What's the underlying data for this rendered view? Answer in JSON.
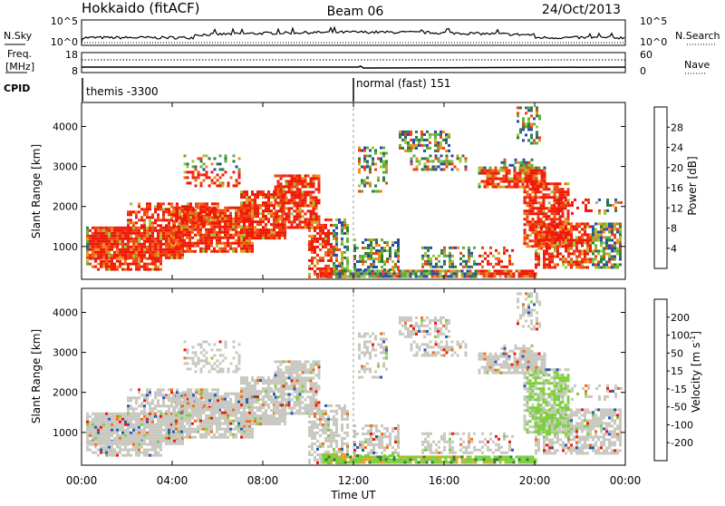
{
  "header": {
    "radar": "Hokkaido (fitACF)",
    "beam": "Beam 06",
    "date": "24/Oct/2013"
  },
  "strip_panels": {
    "nsky_label": "N.Sky",
    "nsearch_label": "N.Search",
    "nsky_ticks": [
      "10^5",
      "10^0"
    ],
    "nsearch_ticks": [
      "10^5",
      "10^0"
    ],
    "freq_label_1": "Freq.",
    "freq_label_2": "[MHz]",
    "freq_ticks": [
      "18",
      "8"
    ],
    "nave_label": "Nave",
    "nave_ticks": [
      "60",
      "0"
    ],
    "cpid_label": "CPID",
    "cpid_segments": [
      {
        "label": "themis -3300",
        "start_hour": 0
      },
      {
        "label": "normal (fast) 151",
        "start_hour": 12
      }
    ]
  },
  "chart_data": [
    {
      "type": "heatmap",
      "name": "power",
      "ylabel": "Slant Range [km]",
      "yticks": [
        1000,
        2000,
        3000,
        4000
      ],
      "ylim": [
        180,
        4600
      ],
      "xlim": [
        0,
        24
      ],
      "colorbar": {
        "label": "Power [dB]",
        "tick_labels": [
          "4",
          "8",
          "12",
          "16",
          "20",
          "24",
          "28"
        ],
        "colors": [
          "#0a1cf5",
          "#2a4aa8",
          "#2e7d3c",
          "#5fae3e",
          "#98c83c",
          "#f0b020",
          "#f09020",
          "#f06818",
          "#f04010",
          "#f01808"
        ]
      }
    },
    {
      "type": "heatmap",
      "name": "velocity",
      "ylabel": "Slant Range [km]",
      "yticks": [
        1000,
        2000,
        3000,
        4000
      ],
      "ylim": [
        180,
        4600
      ],
      "xlim": [
        0,
        24
      ],
      "colorbar": {
        "label_main": "Velocity [m s",
        "label_sup": "-1",
        "label_end": "]",
        "tick_labels": [
          "200",
          "100",
          "50",
          "15",
          "-15",
          "-50",
          "-100",
          "-200"
        ],
        "colors": [
          "#1c2aa8",
          "#2a5ab0",
          "#2e7d3c",
          "#7cd03c",
          "#c8c8c0",
          "#f0a020",
          "#f07018",
          "#f04010",
          "#f01808"
        ]
      }
    }
  ],
  "xaxis": {
    "label": "Time UT",
    "tick_labels": [
      "00:00",
      "04:00",
      "08:00",
      "12:00",
      "16:00",
      "20:00",
      "00:00"
    ]
  }
}
